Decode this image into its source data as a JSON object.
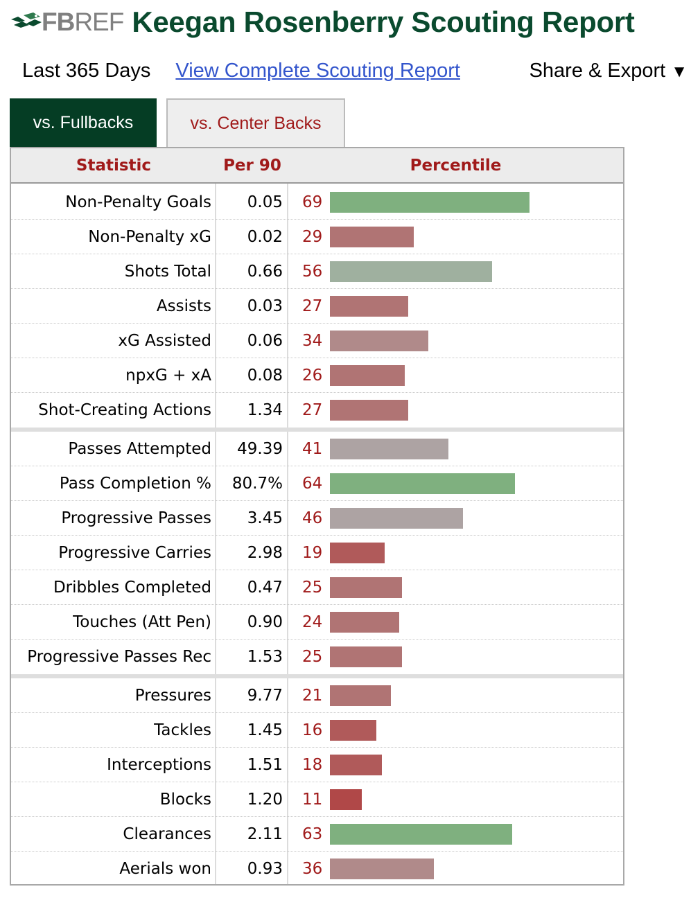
{
  "header": {
    "logo_fb": "FB",
    "logo_ref": "REF",
    "title": "Keegan Rosenberry Scouting Report"
  },
  "subbar": {
    "period": "Last 365 Days",
    "report_link": "View Complete Scouting Report",
    "share_label": "Share & Export",
    "share_caret": "▼"
  },
  "tabs": [
    {
      "label": "vs. Fullbacks",
      "active": true
    },
    {
      "label": "vs. Center Backs",
      "active": false
    }
  ],
  "table": {
    "columns": [
      "Statistic",
      "Per 90",
      "Percentile"
    ],
    "groups": [
      [
        {
          "stat": "Non-Penalty Goals",
          "per90": "0.05",
          "percentile": 69
        },
        {
          "stat": "Non-Penalty xG",
          "per90": "0.02",
          "percentile": 29
        },
        {
          "stat": "Shots Total",
          "per90": "0.66",
          "percentile": 56
        },
        {
          "stat": "Assists",
          "per90": "0.03",
          "percentile": 27
        },
        {
          "stat": "xG Assisted",
          "per90": "0.06",
          "percentile": 34
        },
        {
          "stat": "npxG + xA",
          "per90": "0.08",
          "percentile": 26
        },
        {
          "stat": "Shot-Creating Actions",
          "per90": "1.34",
          "percentile": 27
        }
      ],
      [
        {
          "stat": "Passes Attempted",
          "per90": "49.39",
          "percentile": 41
        },
        {
          "stat": "Pass Completion %",
          "per90": "80.7%",
          "percentile": 64
        },
        {
          "stat": "Progressive Passes",
          "per90": "3.45",
          "percentile": 46
        },
        {
          "stat": "Progressive Carries",
          "per90": "2.98",
          "percentile": 19
        },
        {
          "stat": "Dribbles Completed",
          "per90": "0.47",
          "percentile": 25
        },
        {
          "stat": "Touches (Att Pen)",
          "per90": "0.90",
          "percentile": 24
        },
        {
          "stat": "Progressive Passes Rec",
          "per90": "1.53",
          "percentile": 25
        }
      ],
      [
        {
          "stat": "Pressures",
          "per90": "9.77",
          "percentile": 21
        },
        {
          "stat": "Tackles",
          "per90": "1.45",
          "percentile": 16
        },
        {
          "stat": "Interceptions",
          "per90": "1.51",
          "percentile": 18
        },
        {
          "stat": "Blocks",
          "per90": "1.20",
          "percentile": 11
        },
        {
          "stat": "Clearances",
          "per90": "2.11",
          "percentile": 63
        },
        {
          "stat": "Aerials won",
          "per90": "0.93",
          "percentile": 36
        }
      ]
    ]
  },
  "colors": {
    "brand_green": "#0a4a2e",
    "tab_active_bg": "#053d24",
    "accent_red": "#a01a1a",
    "link_blue": "#3355cc",
    "bar_high": "#7fb07f",
    "bar_mid": "#ada3a3",
    "bar_low": "#b04848"
  }
}
